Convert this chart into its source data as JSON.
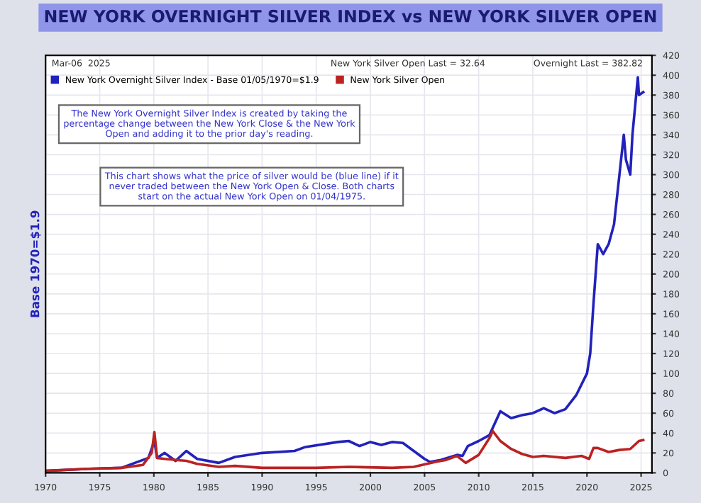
{
  "chart_data": {
    "type": "line",
    "title": "NEW YORK OVERNIGHT SILVER INDEX vs NEW YORK SILVER OPEN",
    "ylabel": "Base 1970=$1.9",
    "annotations": [
      "Mar-06  2025",
      "New York Silver Open Last = 32.64",
      "Overnight Last = 382.82",
      "The New York Overnight Silver Index is created by taking the percentage change between the New York Close & the New York Open and adding it to the prior day's reading.",
      "This chart shows what the price of silver would be (blue line) if it never traded between the New York Open & Close. Both charts start on the actual New York Open on 01/04/1975."
    ],
    "series": [
      {
        "name": "New York Overnight Silver Index - Base 01/05/1970=$1.9",
        "color": "#2222bb",
        "x": [
          1970,
          1974,
          1977,
          1979.5,
          1980.05,
          1980.3,
          1981,
          1982,
          1983,
          1984,
          1986,
          1987.5,
          1990,
          1993,
          1994,
          1997,
          1998,
          1999,
          2000,
          2001,
          2002,
          2003,
          2004,
          2005,
          2005.5,
          2006.5,
          2008,
          2008.5,
          2009,
          2010,
          2011,
          2012,
          2013,
          2014,
          2015,
          2016,
          2017,
          2018,
          2019,
          2020,
          2020.3,
          2020.6,
          2021,
          2021.5,
          2022,
          2022.5,
          2023,
          2023.4,
          2023.6,
          2024,
          2024.2,
          2024.7,
          2024.8,
          2025.2
        ],
        "values": [
          2,
          4,
          5,
          15,
          32,
          15,
          20,
          12,
          22,
          14,
          10,
          16,
          20,
          22,
          26,
          31,
          32,
          27,
          31,
          28,
          31,
          30,
          22,
          14,
          11,
          13,
          18,
          17,
          27,
          32,
          38,
          62,
          55,
          58,
          60,
          65,
          60,
          64,
          78,
          100,
          120,
          170,
          230,
          220,
          230,
          250,
          300,
          340,
          315,
          300,
          340,
          398,
          380,
          383
        ]
      },
      {
        "name": "New York Silver Open",
        "color": "#bb2222",
        "x": [
          1970,
          1974,
          1977,
          1979,
          1979.8,
          1980.05,
          1980.3,
          1981,
          1983,
          1984,
          1986,
          1987.5,
          1990,
          1995,
          1998,
          2002,
          2004,
          2006,
          2007,
          2008,
          2008.8,
          2010,
          2011,
          2011.3,
          2012,
          2013,
          2014,
          2015,
          2016,
          2018,
          2019.5,
          2020.2,
          2020.6,
          2021,
          2022,
          2023,
          2024,
          2024.8,
          2025.2
        ],
        "values": [
          2,
          4,
          5,
          8,
          20,
          41,
          15,
          14,
          12,
          9,
          6,
          7,
          5,
          5,
          6,
          5,
          6,
          11,
          13,
          17,
          10,
          18,
          35,
          42,
          32,
          24,
          19,
          16,
          17,
          15,
          17,
          14,
          25,
          25,
          21,
          23,
          24,
          32,
          33
        ]
      }
    ],
    "xlim": [
      1970,
      2026
    ],
    "xticks": [
      1970,
      1975,
      1980,
      1985,
      1990,
      1995,
      2000,
      2005,
      2010,
      2015,
      2020,
      2025
    ],
    "ylim": [
      0,
      420
    ],
    "yticks": [
      0,
      20,
      40,
      60,
      80,
      100,
      120,
      140,
      160,
      180,
      200,
      220,
      240,
      260,
      280,
      300,
      320,
      340,
      360,
      380,
      400,
      420
    ],
    "grid": true,
    "legend": "top left",
    "marker": "none",
    "line_style": "solid"
  }
}
